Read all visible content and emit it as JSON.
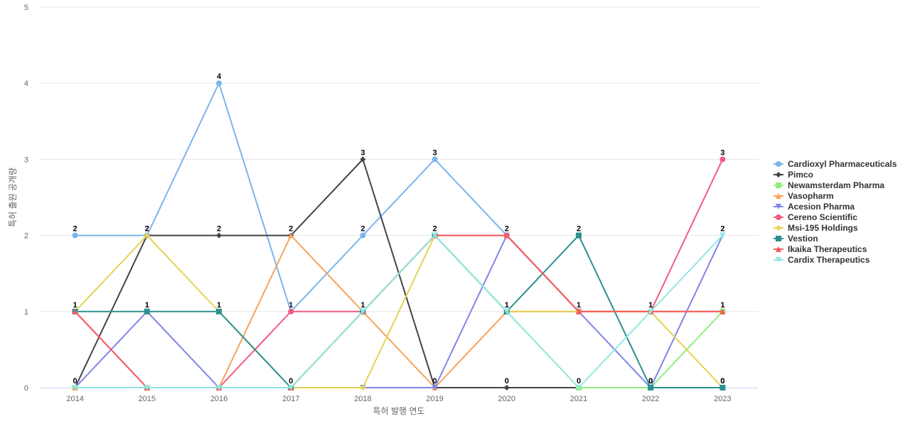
{
  "chart_data": {
    "type": "line",
    "xlabel": "특허 발행 연도",
    "ylabel": "특허 출원 공개량",
    "ylim": [
      0,
      5
    ],
    "yticks": [
      0,
      1,
      2,
      3,
      4,
      5
    ],
    "categories": [
      "2014",
      "2015",
      "2016",
      "2017",
      "2018",
      "2019",
      "2020",
      "2021",
      "2022",
      "2023"
    ],
    "grid": true,
    "legend_position": "right",
    "series": [
      {
        "name": "Cardioxyl Pharmaceuticals",
        "color": "#7cb5ec",
        "marker": "circle",
        "values": [
          2,
          2,
          4,
          1,
          2,
          3,
          2,
          1,
          1,
          1
        ]
      },
      {
        "name": "Pimco",
        "color": "#434348",
        "marker": "diamond",
        "values": [
          0,
          2,
          2,
          2,
          3,
          0,
          0,
          0,
          0,
          0
        ]
      },
      {
        "name": "Newamsterdam Pharma",
        "color": "#90ed7d",
        "marker": "square",
        "values": [
          0,
          0,
          0,
          0,
          1,
          2,
          1,
          0,
          0,
          1
        ]
      },
      {
        "name": "Vasopharm",
        "color": "#f7a35c",
        "marker": "triangle",
        "values": [
          0,
          0,
          0,
          2,
          1,
          0,
          1,
          1,
          1,
          1
        ]
      },
      {
        "name": "Acesion Pharma",
        "color": "#8085e9",
        "marker": "triangle-down",
        "values": [
          0,
          1,
          0,
          0,
          0,
          0,
          2,
          1,
          0,
          2
        ]
      },
      {
        "name": "Cereno Scientific",
        "color": "#f15c80",
        "marker": "circle",
        "values": [
          1,
          0,
          0,
          1,
          1,
          2,
          2,
          1,
          1,
          3
        ]
      },
      {
        "name": "Msi-195 Holdings",
        "color": "#e4d354",
        "marker": "diamond",
        "values": [
          1,
          2,
          1,
          0,
          0,
          2,
          1,
          1,
          1,
          0
        ]
      },
      {
        "name": "Vestion",
        "color": "#2b908f",
        "marker": "square",
        "values": [
          1,
          1,
          1,
          0,
          1,
          2,
          1,
          2,
          0,
          0
        ]
      },
      {
        "name": "Ikaika Therapeutics",
        "color": "#f45b5b",
        "marker": "triangle",
        "values": [
          1,
          0,
          0,
          0,
          1,
          2,
          2,
          1,
          1,
          1
        ]
      },
      {
        "name": "Cardix Therapeutics",
        "color": "#91e8e1",
        "marker": "triangle-down",
        "values": [
          0,
          0,
          0,
          0,
          1,
          2,
          1,
          0,
          1,
          2
        ]
      }
    ],
    "data_labels": [
      [
        "2",
        "2",
        "4",
        "1",
        "2",
        "3",
        "2",
        "1",
        "1",
        "1"
      ],
      [
        "0",
        "2",
        "2",
        "2",
        "3",
        "0",
        "0",
        "0",
        "0",
        "0"
      ],
      [
        "1",
        "1",
        "1",
        "0",
        "1",
        "2",
        "1",
        "2",
        "0",
        "0"
      ],
      [
        "",
        "",
        "",
        "",
        "",
        "",
        "",
        "",
        "",
        "3"
      ],
      [
        "",
        "",
        "",
        "",
        "",
        "",
        "",
        "",
        "",
        "2"
      ]
    ]
  }
}
